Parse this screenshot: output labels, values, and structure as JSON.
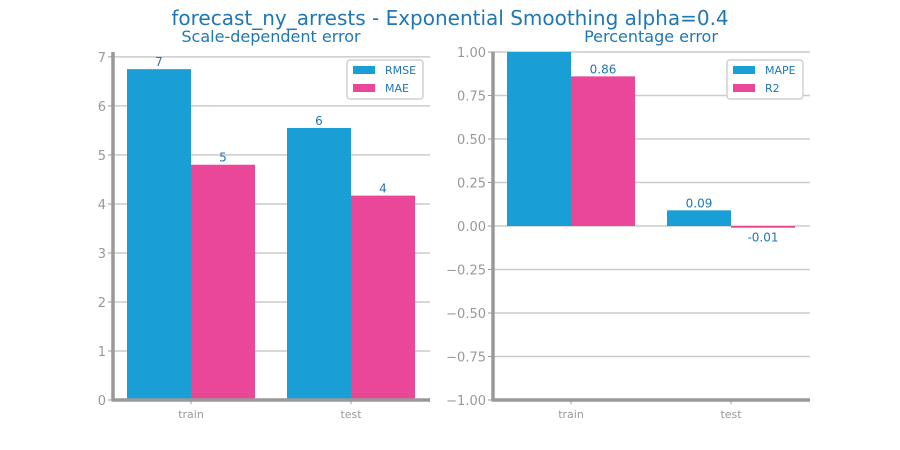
{
  "title": "forecast_ny_arrests - Exponential Smoothing alpha=0.4",
  "colors": {
    "blue": "#1a9ed6",
    "pink": "#ea4799",
    "axis": "#999999",
    "grid": "#cccccc",
    "text": "#1f77b4"
  },
  "chart_data": [
    {
      "type": "bar",
      "title": "Scale-dependent error",
      "categories": [
        "train",
        "test"
      ],
      "series": [
        {
          "name": "RMSE",
          "values": [
            6.75,
            5.55
          ],
          "labels": [
            "7",
            "6"
          ]
        },
        {
          "name": "MAE",
          "values": [
            4.8,
            4.17
          ],
          "labels": [
            "5",
            "4"
          ]
        }
      ],
      "ylim": [
        0,
        7.1
      ],
      "yticks": [
        0,
        1,
        2,
        3,
        4,
        5,
        6,
        7
      ],
      "ytick_labels": [
        "0",
        "1",
        "2",
        "3",
        "4",
        "5",
        "6",
        "7"
      ],
      "grid": true,
      "legend": "top-right"
    },
    {
      "type": "bar",
      "title": "Percentage error",
      "categories": [
        "train",
        "test"
      ],
      "series": [
        {
          "name": "MAPE",
          "values": [
            1.0,
            0.09
          ],
          "labels": [
            "",
            "0.09"
          ]
        },
        {
          "name": "R2",
          "values": [
            0.86,
            -0.01
          ],
          "labels": [
            "0.86",
            "-0.01"
          ]
        }
      ],
      "ylim": [
        -1.0,
        1.0
      ],
      "yticks": [
        -1.0,
        -0.75,
        -0.5,
        -0.25,
        0.0,
        0.25,
        0.5,
        0.75,
        1.0
      ],
      "ytick_labels": [
        "−1.00",
        "−0.75",
        "−0.50",
        "−0.25",
        "0.00",
        "0.25",
        "0.50",
        "0.75",
        "1.00"
      ],
      "grid": true,
      "legend": "top-right"
    }
  ]
}
